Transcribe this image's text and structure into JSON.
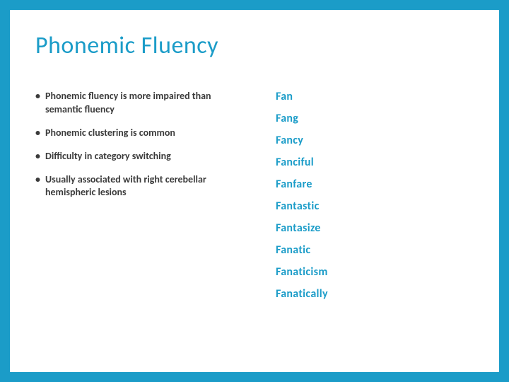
{
  "colors": {
    "accent": "#1b9cc8",
    "text": "#3b3b3b",
    "background": "#ffffff"
  },
  "slide": {
    "title": "Phonemic Fluency",
    "bullets": [
      "Phonemic fluency is more impaired than semantic fluency",
      "Phonemic clustering is common",
      "Difficulty in category switching",
      "Usually associated with right cerebellar hemispheric lesions"
    ],
    "words": [
      "Fan",
      "Fang",
      "Fancy",
      "Fanciful",
      "Fanfare",
      "Fantastic",
      "Fantasize",
      "Fanatic",
      "Fanaticism",
      "Fanatically"
    ]
  }
}
